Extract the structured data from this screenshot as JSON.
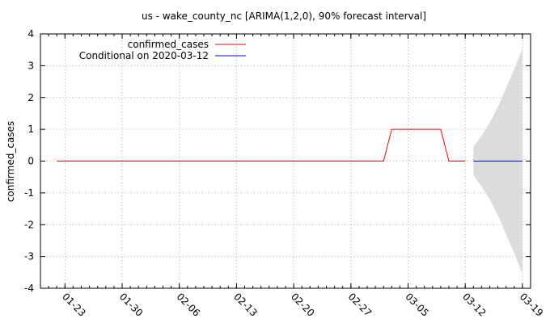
{
  "chart_data": {
    "type": "line",
    "title": "us - wake_county_nc [ARIMA(1,2,0), 90% forecast interval]",
    "xlabel": "",
    "ylabel": "confirmed_cases",
    "ylim": [
      -4,
      4
    ],
    "yticks": [
      -4,
      -3,
      -2,
      -1,
      0,
      1,
      2,
      3,
      4
    ],
    "xlim": [
      "2020-01-20",
      "2020-03-20"
    ],
    "xticks": [
      "01-23",
      "01-30",
      "02-06",
      "02-13",
      "02-20",
      "02-27",
      "03-05",
      "03-12",
      "03-19"
    ],
    "xtick_dates": [
      "2020-01-23",
      "2020-01-30",
      "2020-02-06",
      "2020-02-13",
      "2020-02-20",
      "2020-02-27",
      "2020-03-05",
      "2020-03-12",
      "2020-03-19"
    ],
    "grid": true,
    "legend_position": "top-left",
    "series": [
      {
        "name": "confirmed_cases",
        "color": "#ff0000",
        "points": [
          [
            "2020-01-22",
            0
          ],
          [
            "2020-03-02",
            0
          ],
          [
            "2020-03-03",
            1
          ],
          [
            "2020-03-09",
            1
          ],
          [
            "2020-03-10",
            0
          ],
          [
            "2020-03-12",
            0
          ]
        ]
      },
      {
        "name": "Conditional on 2020-03-12",
        "color": "#0000ff",
        "points": [
          [
            "2020-03-13",
            0
          ],
          [
            "2020-03-19",
            0
          ]
        ]
      }
    ],
    "forecast_interval": {
      "color": "#dcdcdc",
      "points": [
        [
          "2020-03-13",
          -0.45,
          0.45
        ],
        [
          "2020-03-14",
          -0.8,
          0.8
        ],
        [
          "2020-03-15",
          -1.2,
          1.2
        ],
        [
          "2020-03-16",
          -1.7,
          1.7
        ],
        [
          "2020-03-17",
          -2.3,
          2.3
        ],
        [
          "2020-03-18",
          -2.9,
          2.9
        ],
        [
          "2020-03-19",
          -3.55,
          3.55
        ]
      ]
    }
  }
}
